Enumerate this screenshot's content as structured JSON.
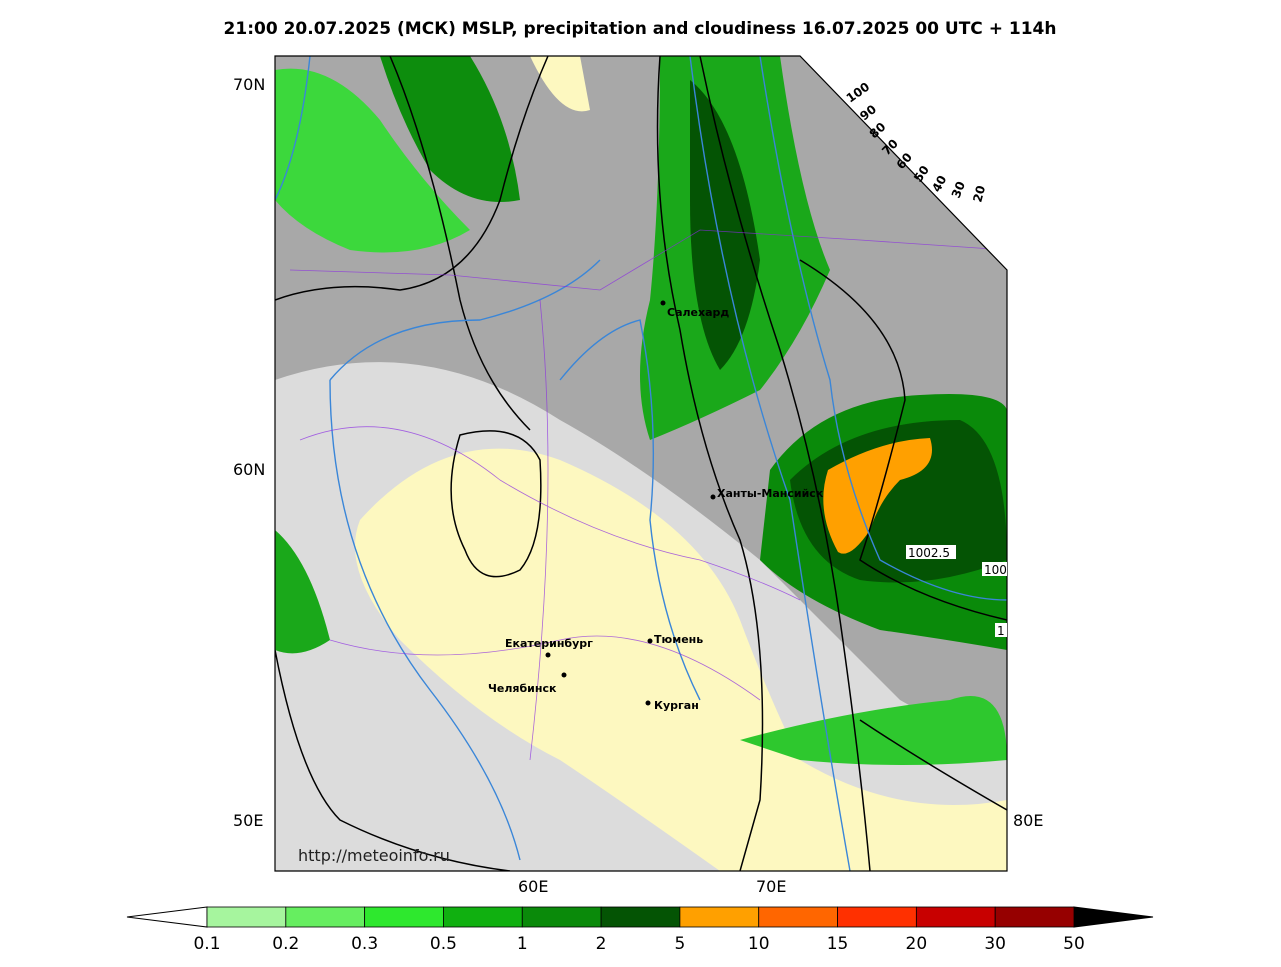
{
  "title": "21:00 20.07.2025 (МСК) MSLP, precipitation and cloudiness 16.07.2025 00 UTC + 114h",
  "map": {
    "lat_labels": [
      "70N",
      "60N"
    ],
    "lon_labels": [
      "50E",
      "60E",
      "70E",
      "80E"
    ],
    "cities": [
      "Салехард",
      "Ханты-Мансийск",
      "Екатеринбург",
      "Тюмень",
      "Челябинск",
      "Курган"
    ],
    "isobar_labels": [
      "1002.5",
      "100",
      "1"
    ],
    "cloud_scale": [
      100,
      90,
      80,
      70,
      60,
      50,
      40,
      30,
      20
    ],
    "url": "http://meteoinfo.ru"
  },
  "colorbar": {
    "labels": [
      0.1,
      0.2,
      0.3,
      0.5,
      1,
      2,
      5,
      10,
      15,
      20,
      30,
      50
    ],
    "colors": [
      "#a6f59e",
      "#66ee60",
      "#2ee82e",
      "#10b010",
      "#0a8a0a",
      "#045404",
      "#ffa000",
      "#ff6600",
      "#ff3000",
      "#c80000",
      "#960000"
    ]
  }
}
